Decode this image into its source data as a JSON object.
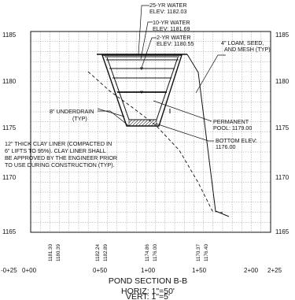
{
  "drawing": {
    "title": "POND SECTION B-B",
    "horiz_scale": "HORIZ: 1\"=50'",
    "vert_scale": "VERT: 1\"=5'"
  },
  "elevations_left": [
    "1185",
    "1180",
    "1175",
    "1170",
    "1165"
  ],
  "elevations_right": [
    "1185",
    "1180",
    "1175",
    "1170",
    "1165"
  ],
  "stations": [
    "-0+25",
    "0+00",
    "0+50",
    "1+00",
    "1+50",
    "2+00",
    "2+25"
  ],
  "ground_elevations": [
    "1181.30",
    "1180.39",
    "1182.24",
    "1182.89",
    "1174.86",
    "1176.00",
    "1170.37",
    "1176.40"
  ],
  "annotations": {
    "water_25yr": "25-YR WATER",
    "water_25yr_elev": "ELEV: 1182.03",
    "water_10yr": "10-YR WATER",
    "water_10yr_elev": "ELEV: 1181.69",
    "water_2yr": "2-YR WATER",
    "water_2yr_elev": "ELEV: 1180.55",
    "loam_1": "4\" LOAM, SEED,",
    "loam_2": "AND MESH (TYP)",
    "underdrain_1": "8\" UNDERDRAIN",
    "underdrain_2": "(TYP)",
    "pool_1": "PERMANENT",
    "pool_2": "POOL: 1179.00",
    "bottom_1": "BOTTOM ELEV:",
    "bottom_2": "1176.00",
    "liner_1": "12\" THICK CLAY LINER (COMPACTED IN",
    "liner_2": "6\" LIFTS TO 95%). CLAY LINER SHALL",
    "liner_3": "BE APPROVED BY THE ENGINEER PRIOR",
    "liner_4": "TO USE DURING CONSTRUCTION (TYP)."
  }
}
